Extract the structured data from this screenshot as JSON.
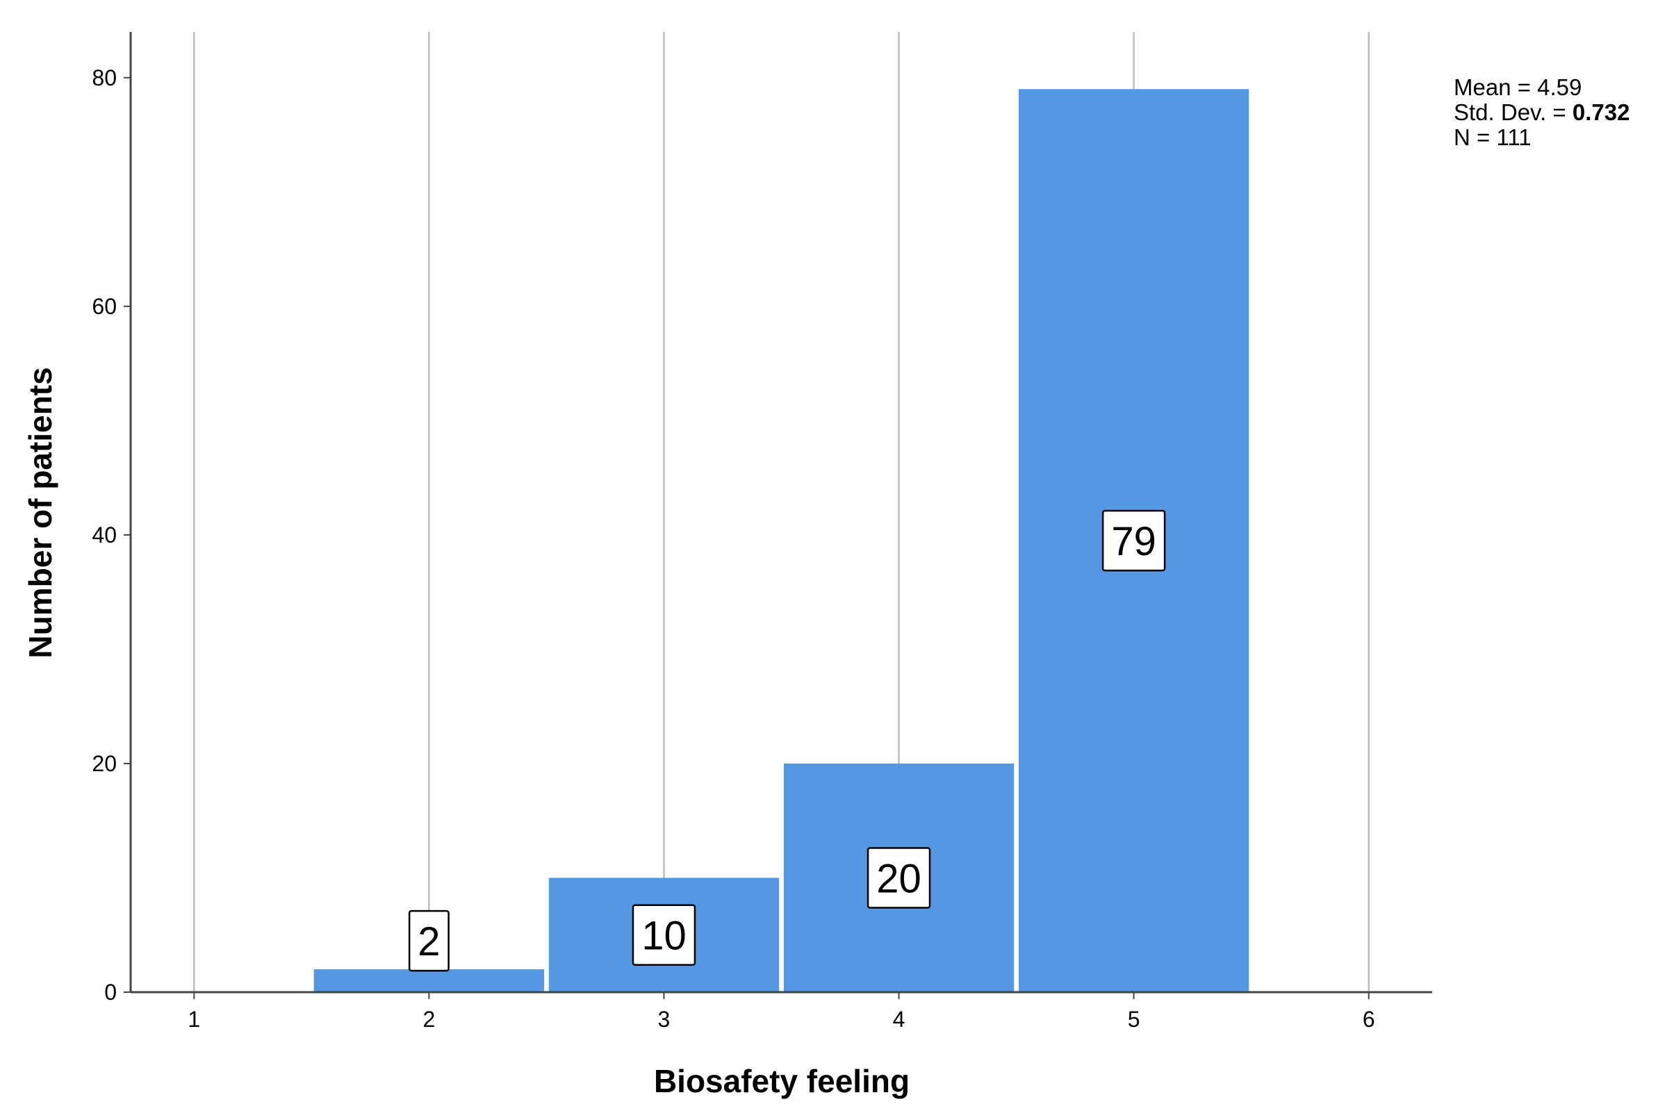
{
  "chart_data": {
    "type": "bar",
    "title": "",
    "xlabel": "Biosafety feeling",
    "ylabel": "Number of patients",
    "x_ticks": [
      "1",
      "2",
      "3",
      "4",
      "5",
      "6"
    ],
    "xlim": [
      0.73,
      6.27
    ],
    "ylim": [
      0,
      84
    ],
    "y_ticks": [
      0,
      20,
      40,
      60,
      80
    ],
    "categories": [
      "2",
      "3",
      "4",
      "5"
    ],
    "x": [
      2,
      3,
      4,
      5
    ],
    "values": [
      2,
      10,
      20,
      79
    ],
    "data_labels": [
      "2",
      "10",
      "20",
      "79"
    ],
    "grid": "vertical gridlines at x ticks",
    "colors": {
      "bar": "#5497e3",
      "grid": "#bdbdbd",
      "axis": "#444444"
    },
    "stats": {
      "mean": "Mean = 4.59",
      "std_prefix": "Std. Dev. = ",
      "std_value": "0.732",
      "n": "N = 111"
    }
  }
}
